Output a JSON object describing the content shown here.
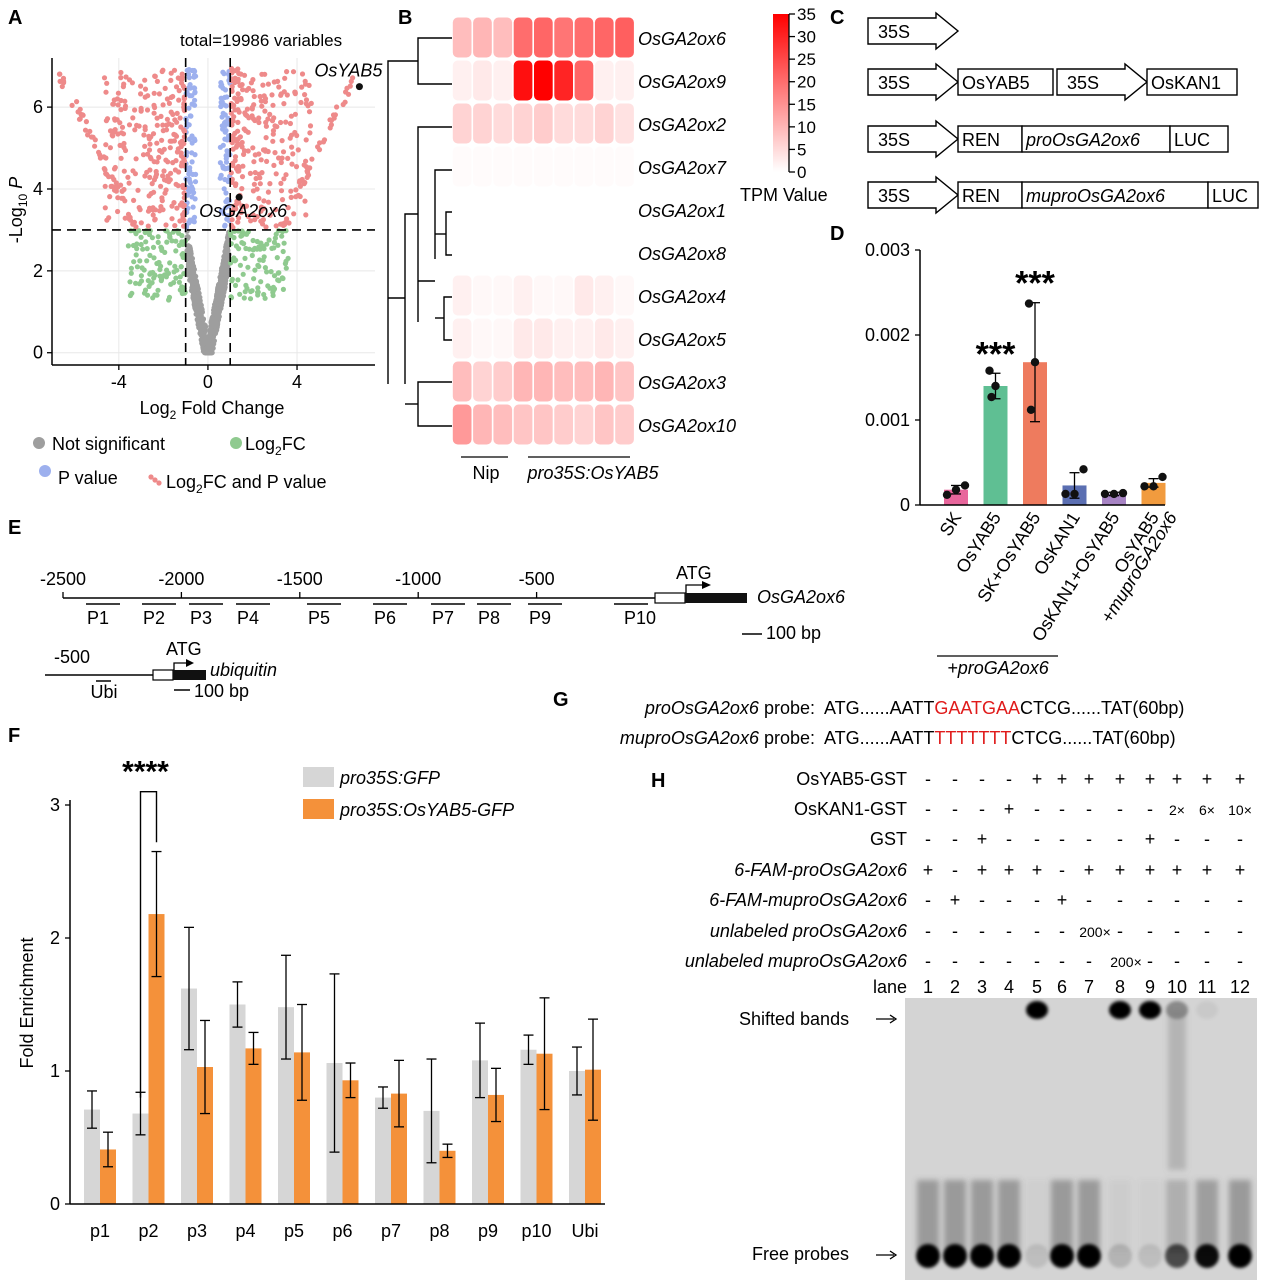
{
  "panels": {
    "A": "A",
    "B": "B",
    "C": "C",
    "D": "D",
    "E": "E",
    "F": "F",
    "G": "G",
    "H": "H"
  },
  "chart_data": [
    {
      "panel": "A",
      "type": "scatter",
      "title": "total=19986 variables",
      "xlabel": "Log2 Fold Change",
      "xlabel_main": "Log",
      "xlabel_sub": "2",
      "xlabel_rest": " Fold Change",
      "ylabel_main": "-Log",
      "ylabel_sub": "10",
      "ylabel_var": " P",
      "xlim": [
        -7,
        7.5
      ],
      "ylim": [
        -0.3,
        7.2
      ],
      "xticks": [
        -4,
        0,
        4
      ],
      "yticks": [
        0,
        2,
        4,
        6
      ],
      "fc_cutoff": 1,
      "p_cutoff": 3,
      "labeled_genes": [
        {
          "name": "OsYAB5",
          "x": 6.8,
          "y": 6.5
        },
        {
          "name": "OsGA2ox6",
          "x": 1.4,
          "y": 3.8
        }
      ],
      "legend": [
        {
          "label": "Not significant",
          "color": "#9e9e9e"
        },
        {
          "label": "Log2FC",
          "color": "#8fca8f"
        },
        {
          "label": "P value",
          "color": "#9db0ee"
        },
        {
          "label": "Log2FC and P value",
          "color": "#ee8a8a"
        }
      ],
      "legend_text": {
        "ns": "Not significant",
        "fc_main": "Log",
        "fc_sub": "2",
        "fc_rest": "FC",
        "pv": "P value",
        "both_main": "Log",
        "both_sub": "2",
        "both_rest": "FC and P value"
      }
    },
    {
      "panel": "B",
      "type": "heatmap",
      "rows": [
        "OsGA2ox6",
        "OsGA2ox9",
        "OsGA2ox2",
        "OsGA2ox7",
        "OsGA2ox1",
        "OsGA2ox8",
        "OsGA2ox4",
        "OsGA2ox5",
        "OsGA2ox3",
        "OsGA2ox10"
      ],
      "groups": [
        {
          "name": "Nip",
          "n": 3
        },
        {
          "name": "pro35S:OsYAB5",
          "n": 6
        }
      ],
      "values": [
        [
          9,
          10,
          9,
          20,
          21,
          19,
          20,
          21,
          22
        ],
        [
          2,
          3,
          2,
          33,
          35,
          30,
          21,
          2,
          2
        ],
        [
          6,
          6,
          5,
          6,
          7,
          5,
          5,
          6,
          4
        ],
        [
          0.5,
          0.5,
          0.5,
          0.5,
          0.5,
          0.5,
          0.5,
          0.5,
          0.5
        ],
        [
          0,
          0,
          0,
          0,
          0,
          0,
          0,
          0,
          0
        ],
        [
          0,
          0,
          0,
          0,
          0,
          0,
          0,
          0,
          0
        ],
        [
          2,
          1,
          1,
          2,
          1,
          1,
          3,
          2,
          1
        ],
        [
          2,
          1,
          1,
          3,
          3,
          2,
          2,
          3,
          2
        ],
        [
          9,
          6,
          7,
          10,
          10,
          9,
          9,
          10,
          8
        ],
        [
          14,
          10,
          9,
          8,
          8,
          7,
          6,
          8,
          7
        ]
      ],
      "colorbar": {
        "min": 0,
        "max": 35,
        "ticks": [
          0,
          5,
          10,
          15,
          20,
          25,
          30,
          35
        ],
        "label": "TPM Value"
      }
    },
    {
      "panel": "D",
      "type": "bar",
      "categories": [
        "SK",
        "OsYAB5",
        "SK+OsYAB5",
        "OsKAN1",
        "OsKAN1+OsYAB5",
        "OsYAB5 +muproGA2ox6"
      ],
      "cat_lines": [
        [
          "SK"
        ],
        [
          "OsYAB5"
        ],
        [
          "SK+OsYAB5"
        ],
        [
          "OsKAN1"
        ],
        [
          "OsKAN1+OsYAB5"
        ],
        [
          "OsYAB5",
          "+muproGA2ox6"
        ]
      ],
      "values": [
        0.00018,
        0.0014,
        0.00168,
        0.00023,
        0.00013,
        0.00026
      ],
      "errors": [
        5e-05,
        0.00015,
        0.0007,
        0.00015,
        2e-05,
        5e-05
      ],
      "points": [
        [
          0.00012,
          0.00018,
          0.00023
        ],
        [
          0.00127,
          0.0014,
          0.00158
        ],
        [
          0.00112,
          0.00168,
          0.00237
        ],
        [
          0.00013,
          0.00013,
          0.00042
        ],
        [
          0.00013,
          0.00013,
          0.00014
        ],
        [
          0.00022,
          0.00022,
          0.00033
        ]
      ],
      "colors": [
        "#e8669c",
        "#5fbf93",
        "#ee7b5e",
        "#5b6fb2",
        "#a784c4",
        "#f19b3e"
      ],
      "significance": [
        "",
        "***",
        "***",
        "",
        "",
        ""
      ],
      "ylim": [
        0,
        0.003
      ],
      "yticks": [
        "0",
        "0.001",
        "0.002",
        "0.003"
      ],
      "group_label": "+proGA2ox6"
    },
    {
      "panel": "F",
      "type": "bar",
      "categories": [
        "p1",
        "p2",
        "p3",
        "p4",
        "p5",
        "p6",
        "p7",
        "p8",
        "p9",
        "p10",
        "Ubi"
      ],
      "series": [
        {
          "name": "pro35S:GFP",
          "color": "#d6d6d6",
          "values": [
            0.71,
            0.68,
            1.62,
            1.5,
            1.48,
            1.06,
            0.8,
            0.7,
            1.08,
            1.16,
            1.0
          ],
          "errors": [
            0.14,
            0.16,
            0.46,
            0.17,
            0.39,
            0.67,
            0.08,
            0.39,
            0.28,
            0.11,
            0.18
          ]
        },
        {
          "name": "pro35S:OsYAB5-GFP",
          "color": "#f4913a",
          "values": [
            0.41,
            2.18,
            1.03,
            1.17,
            1.14,
            0.93,
            0.83,
            0.4,
            0.82,
            1.13,
            1.01
          ],
          "errors": [
            0.13,
            0.47,
            0.35,
            0.12,
            0.36,
            0.13,
            0.25,
            0.05,
            0.2,
            0.42,
            0.38
          ]
        }
      ],
      "ylabel": "Fold Enrichment",
      "ylim": [
        0,
        3
      ],
      "yticks": [
        0,
        1,
        2,
        3
      ],
      "significance": {
        "category": "p2",
        "label": "****"
      }
    }
  ],
  "panel_c": {
    "rows": [
      [
        {
          "t": "arrow",
          "label": "35S"
        }
      ],
      [
        {
          "t": "arrow",
          "label": "35S"
        },
        {
          "t": "box",
          "label": "OsYAB5"
        },
        {
          "t": "arrow",
          "label": "35S"
        },
        {
          "t": "box",
          "label": "OsKAN1"
        }
      ],
      [
        {
          "t": "arrow",
          "label": "35S"
        },
        {
          "t": "box",
          "label": "REN"
        },
        {
          "t": "box",
          "label": "proOsGA2ox6",
          "italic": true
        },
        {
          "t": "box",
          "label": "LUC"
        }
      ],
      [
        {
          "t": "arrow",
          "label": "35S"
        },
        {
          "t": "box",
          "label": "REN"
        },
        {
          "t": "box",
          "label": "muproOsGA2ox6",
          "italic": true
        },
        {
          "t": "box",
          "label": "LUC"
        }
      ]
    ]
  },
  "panel_e": {
    "axis_ticks": [
      "-2500",
      "-2000",
      "-1500",
      "-1000",
      "-500"
    ],
    "primers": [
      "P1",
      "P2",
      "P3",
      "P4",
      "P5",
      "P6",
      "P7",
      "P8",
      "P9",
      "P10"
    ],
    "atg": "ATG",
    "gene": "OsGA2ox6",
    "scale": "100 bp",
    "ubi_tick": "-500",
    "ubi_primer": "Ubi",
    "ubi_gene": "ubiquitin"
  },
  "panel_g": {
    "probe1_name": "proOsGA2ox6",
    "probe1_pre": "ATG......AATT",
    "probe1_motif": "GAATGAA",
    "probe1_post": "CTCG......TAT(60bp)",
    "probe2_name": "muproOsGA2ox6",
    "probe2_pre": "ATG......AATT",
    "probe2_motif": "TTTTTTT",
    "probe2_post": "CTCG......TAT(60bp)",
    "probe_word": " probe:"
  },
  "panel_h": {
    "rows": [
      {
        "label": "OsYAB5-GST",
        "italic": false,
        "vals": [
          "-",
          "-",
          "-",
          "-",
          "+",
          "+",
          "+",
          "+",
          "+",
          "+",
          "+",
          "+"
        ]
      },
      {
        "label": "OsKAN1-GST",
        "italic": false,
        "vals": [
          "-",
          "-",
          "-",
          "+",
          "-",
          "-",
          "-",
          "-",
          "-",
          "2×",
          "6×",
          "10×"
        ]
      },
      {
        "label": "GST",
        "italic": false,
        "vals": [
          "-",
          "-",
          "+",
          "-",
          "-",
          "-",
          "-",
          "-",
          "+",
          "-",
          "-",
          "-"
        ]
      },
      {
        "label": "6-FAM-proOsGA2ox6",
        "italic": true,
        "vals": [
          "+",
          "-",
          "+",
          "+",
          "+",
          "-",
          "+",
          "+",
          "+",
          "+",
          "+",
          "+"
        ]
      },
      {
        "label": "6-FAM-muproOsGA2ox6",
        "italic": true,
        "vals": [
          "-",
          "+",
          "-",
          "-",
          "-",
          "+",
          "-",
          "-",
          "-",
          "-",
          "-",
          "-"
        ]
      },
      {
        "label": "unlabeled proOsGA2ox6",
        "italic": true,
        "vals": [
          "-",
          "-",
          "-",
          "-",
          "-",
          "-",
          "200×",
          "-",
          "-",
          "-",
          "-",
          "-"
        ]
      },
      {
        "label": "unlabeled muproOsGA2ox6",
        "italic": true,
        "vals": [
          "-",
          "-",
          "-",
          "-",
          "-",
          "-",
          "-",
          "200×",
          "-",
          "-",
          "-",
          "-"
        ]
      }
    ],
    "lane_label": "lane",
    "lanes": [
      "1",
      "2",
      "3",
      "4",
      "5",
      "6",
      "7",
      "8",
      "9",
      "10",
      "11",
      "12"
    ],
    "shifted": "Shifted bands",
    "free": "Free probes",
    "shifted_intensity": [
      0,
      0,
      0,
      0,
      1,
      0,
      0,
      1,
      1,
      0.35,
      0.05,
      0
    ],
    "free_intensity": [
      1,
      1,
      1,
      1,
      0.1,
      1,
      1,
      0.15,
      0.1,
      0.65,
      0.95,
      1
    ]
  }
}
